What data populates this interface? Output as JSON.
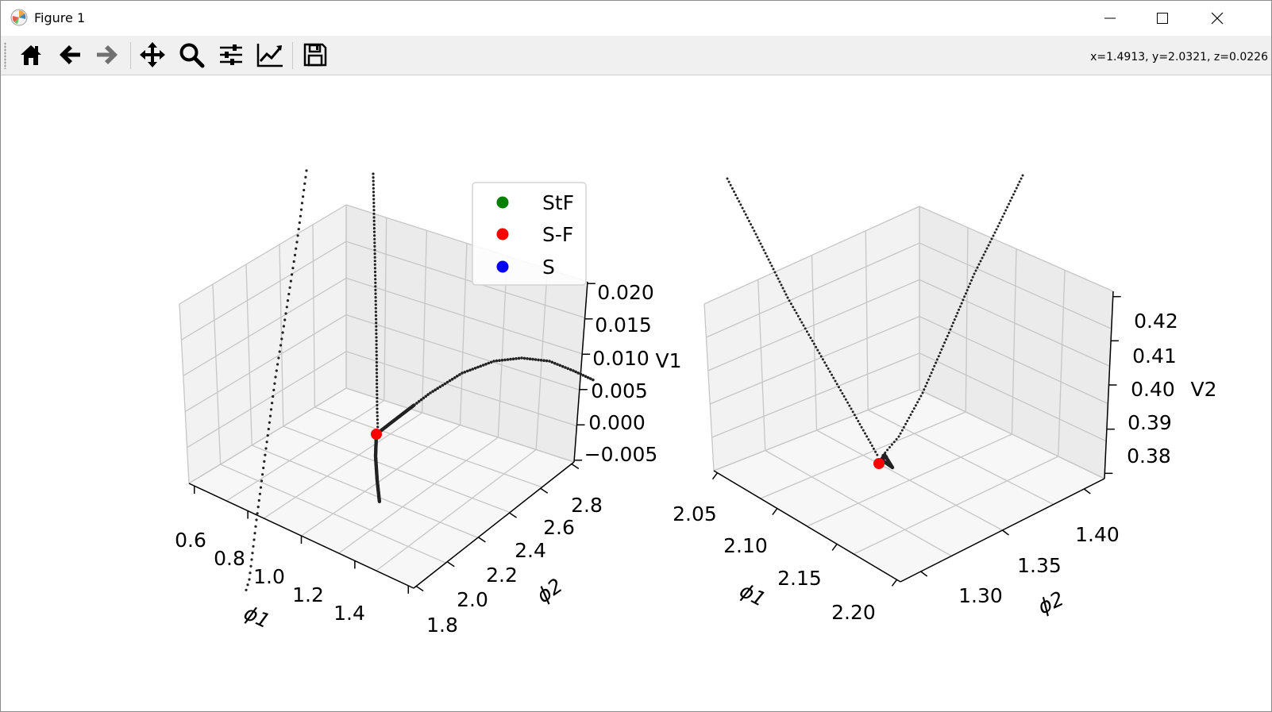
{
  "window": {
    "title": "Figure 1",
    "icon": "matplotlib-logo-icon",
    "controls": [
      "minimize-icon",
      "maximize-icon",
      "close-icon"
    ]
  },
  "toolbar": {
    "buttons": [
      {
        "name": "home",
        "icon": "home-icon"
      },
      {
        "name": "back",
        "icon": "arrow-left-icon"
      },
      {
        "name": "forward",
        "icon": "arrow-right-icon"
      },
      {
        "name": "pan",
        "icon": "move-icon"
      },
      {
        "name": "zoom",
        "icon": "magnifier-icon"
      },
      {
        "name": "subplots",
        "icon": "sliders-icon"
      },
      {
        "name": "edit-axes",
        "icon": "line-chart-icon"
      },
      {
        "name": "save",
        "icon": "floppy-disk-icon"
      }
    ],
    "coordinates": "x=1.4913, y=2.0321, z=0.0226"
  },
  "chart_data": [
    {
      "type": "scatter3d",
      "title": "",
      "xlabel": "ϕ1",
      "ylabel": "ϕ2",
      "zlabel": "V1",
      "xticks": [
        "0.6",
        "0.8",
        "1.0",
        "1.2",
        "1.4"
      ],
      "yticks": [
        "1.8",
        "2.0",
        "2.2",
        "2.4",
        "2.6",
        "2.8"
      ],
      "zticks": [
        "−0.005",
        "0.000",
        "0.005",
        "0.010",
        "0.015",
        "0.020"
      ],
      "grid": true,
      "legend": {
        "placement": "top-right",
        "entries": [
          {
            "label": "StF",
            "color": "#008000"
          },
          {
            "label": "S-F",
            "color": "#ff0000"
          },
          {
            "label": "S",
            "color": "#0000ff"
          }
        ]
      },
      "series": [
        {
          "name": "trajectory",
          "color": "#000000",
          "style": "dotted"
        },
        {
          "name": "S-F",
          "color": "#ff0000",
          "points": [
            {
              "x": 1.0,
              "y": 2.1,
              "z": 0.0
            }
          ]
        }
      ]
    },
    {
      "type": "scatter3d",
      "title": "",
      "xlabel": "ϕ1",
      "ylabel": "ϕ2",
      "zlabel": "V2",
      "xticks": [
        "2.05",
        "2.10",
        "2.15",
        "2.20"
      ],
      "yticks": [
        "1.30",
        "1.35",
        "1.40"
      ],
      "zticks": [
        "0.38",
        "0.39",
        "0.40",
        "0.41",
        "0.42"
      ],
      "grid": true,
      "series": [
        {
          "name": "trajectory",
          "color": "#000000",
          "style": "dotted"
        },
        {
          "name": "S-F",
          "color": "#ff0000",
          "points": [
            {
              "x": 2.13,
              "y": 1.33,
              "z": 0.38
            }
          ]
        }
      ]
    }
  ]
}
